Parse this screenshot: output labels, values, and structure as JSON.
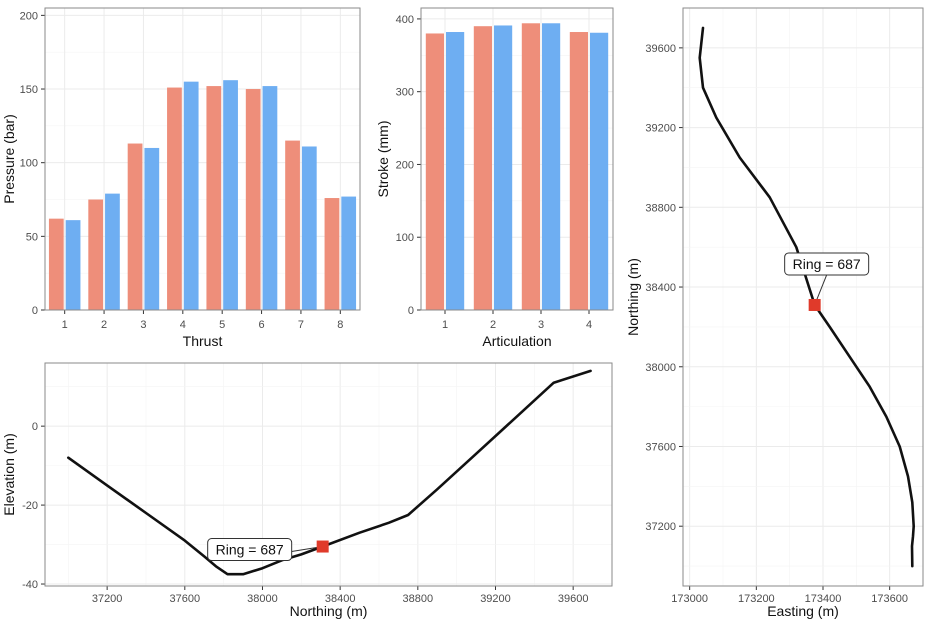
{
  "colors": {
    "series_a": "#EE8E7A",
    "series_b": "#6EAEF2",
    "marker": "#E03A2A",
    "line": "#111111",
    "grid": "#EBEBEB",
    "border": "#8A8A8A",
    "tick_text": "#4D4D4D"
  },
  "chart_data": [
    {
      "id": "thrust",
      "type": "bar",
      "title": "",
      "xlabel": "Thrust",
      "ylabel": "Pressure (bar)",
      "categories": [
        "1",
        "2",
        "3",
        "4",
        "5",
        "6",
        "7",
        "8"
      ],
      "series": [
        {
          "name": "series_a",
          "values": [
            62,
            75,
            113,
            151,
            152,
            150,
            115,
            76
          ]
        },
        {
          "name": "series_b",
          "values": [
            61,
            79,
            110,
            155,
            156,
            152,
            111,
            77
          ]
        }
      ],
      "ylim": [
        0,
        205
      ],
      "yticks": [
        0,
        50,
        100,
        150,
        200
      ],
      "grid": true,
      "legend": "none"
    },
    {
      "id": "articulation",
      "type": "bar",
      "title": "",
      "xlabel": "Articulation",
      "ylabel": "Stroke (mm)",
      "categories": [
        "1",
        "2",
        "3",
        "4"
      ],
      "series": [
        {
          "name": "series_a",
          "values": [
            380,
            390,
            394,
            382
          ]
        },
        {
          "name": "series_b",
          "values": [
            382,
            391,
            394,
            381
          ]
        }
      ],
      "ylim": [
        0,
        415
      ],
      "yticks": [
        0,
        100,
        200,
        300,
        400
      ],
      "grid": true,
      "legend": "none"
    },
    {
      "id": "profile",
      "type": "line",
      "title": "",
      "xlabel": "Northing (m)",
      "ylabel": "Elevation (m)",
      "x": [
        37000,
        37200,
        37400,
        37600,
        37700,
        37760,
        37820,
        37900,
        38000,
        38100,
        38200,
        38310,
        38500,
        38650,
        38750,
        38900,
        39100,
        39300,
        39500,
        39690
      ],
      "y": [
        -8,
        -15,
        -22,
        -29,
        -33,
        -35.5,
        -37.5,
        -37.5,
        -36,
        -34,
        -32.5,
        -30.5,
        -27,
        -24.5,
        -22.5,
        -16,
        -7,
        2,
        11,
        14
      ],
      "xlim": [
        36880,
        39800
      ],
      "ylim": [
        -40.5,
        16
      ],
      "xticks": [
        37200,
        37600,
        38000,
        38400,
        38800,
        39200,
        39600
      ],
      "yticks": [
        0,
        -20,
        -40
      ],
      "grid": true,
      "marker": {
        "x": 38310,
        "y": -30.5,
        "label": "Ring = 687"
      }
    },
    {
      "id": "plan",
      "type": "line",
      "title": "",
      "xlabel": "Easting (m)",
      "ylabel": "Northing (m)",
      "x": [
        173040,
        173030,
        173040,
        173080,
        173150,
        173240,
        173320,
        173375,
        173420,
        173480,
        173540,
        173590,
        173630,
        173655,
        173668,
        173672,
        173670,
        173667,
        173668
      ],
      "y": [
        39700,
        39550,
        39400,
        39250,
        39050,
        38850,
        38600,
        38310,
        38200,
        38050,
        37900,
        37750,
        37600,
        37450,
        37320,
        37200,
        37150,
        37100,
        37000
      ],
      "xlim": [
        172980,
        173700
      ],
      "ylim": [
        36900,
        39800
      ],
      "xticks": [
        173000,
        173200,
        173400,
        173600
      ],
      "yticks": [
        37200,
        37600,
        38000,
        38400,
        38800,
        39200,
        39600
      ],
      "grid": true,
      "marker": {
        "x": 173375,
        "y": 38310,
        "label": "Ring = 687"
      }
    }
  ]
}
